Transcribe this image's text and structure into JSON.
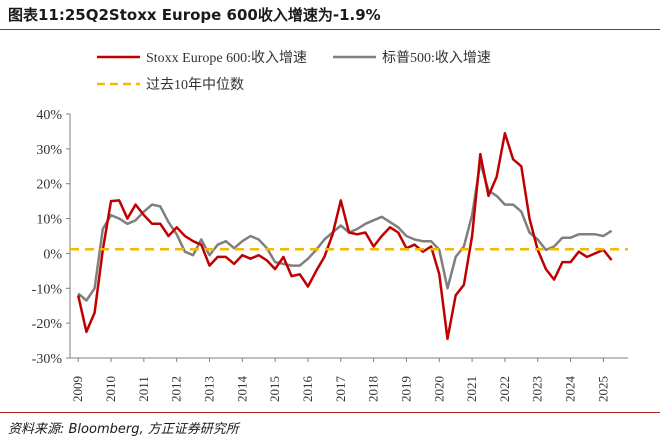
{
  "title": "图表11:25Q2Stoxx Europe 600收入增速为-1.9%",
  "source": "资料来源: Bloomberg, 方正证券研究所",
  "chart_data": {
    "type": "line",
    "ylim": [
      -30,
      40
    ],
    "yticks": [
      -30,
      -20,
      -10,
      0,
      10,
      20,
      30,
      40
    ],
    "ytick_labels": [
      "-30%",
      "-20%",
      "-10%",
      "0%",
      "10%",
      "20%",
      "30%",
      "40%"
    ],
    "xlim": [
      2008.75,
      2025.75
    ],
    "xticks": [
      2009,
      2010,
      2011,
      2012,
      2013,
      2014,
      2015,
      2016,
      2017,
      2018,
      2019,
      2020,
      2021,
      2022,
      2023,
      2024,
      2025
    ],
    "xtick_labels": [
      "2009",
      "2010",
      "2011",
      "2012",
      "2013",
      "2014",
      "2015",
      "2016",
      "2017",
      "2018",
      "2019",
      "2020",
      "2021",
      "2022",
      "2023",
      "2024",
      "2025"
    ],
    "legend": {
      "placement": "top",
      "items": [
        "Stoxx Europe 600:收入增速",
        "标普500:收入增速",
        "过去10年中位数"
      ]
    },
    "series": [
      {
        "name": "Stoxx Europe 600:收入增速",
        "color": "#c00000",
        "style": "solid",
        "x": [
          2009.0,
          2009.25,
          2009.5,
          2009.75,
          2010.0,
          2010.25,
          2010.5,
          2010.75,
          2011.0,
          2011.25,
          2011.5,
          2011.75,
          2012.0,
          2012.25,
          2012.5,
          2012.75,
          2013.0,
          2013.25,
          2013.5,
          2013.75,
          2014.0,
          2014.25,
          2014.5,
          2014.75,
          2015.0,
          2015.25,
          2015.5,
          2015.75,
          2016.0,
          2016.25,
          2016.5,
          2016.75,
          2017.0,
          2017.25,
          2017.5,
          2017.75,
          2018.0,
          2018.25,
          2018.5,
          2018.75,
          2019.0,
          2019.25,
          2019.5,
          2019.75,
          2020.0,
          2020.25,
          2020.5,
          2020.75,
          2021.0,
          2021.25,
          2021.5,
          2021.75,
          2022.0,
          2022.25,
          2022.5,
          2022.75,
          2023.0,
          2023.25,
          2023.5,
          2023.75,
          2024.0,
          2024.25,
          2024.5,
          2024.75,
          2025.0,
          2025.25
        ],
        "values": [
          -12,
          -22.5,
          -17,
          1,
          15,
          15.2,
          10,
          14,
          11,
          8.5,
          8.5,
          5,
          7.5,
          5,
          3.5,
          2.5,
          -3.5,
          -1,
          -1,
          -3,
          -0.5,
          -1.5,
          -0.5,
          -2,
          -4.5,
          -1,
          -6.5,
          -6,
          -9.5,
          -5,
          -1,
          5.5,
          15.2,
          6,
          5.5,
          6,
          2,
          5,
          7.5,
          6,
          1.5,
          2.5,
          0.5,
          2,
          -6,
          -24.5,
          -12,
          -9,
          5,
          28.5,
          16.5,
          22,
          34.5,
          27,
          25,
          10,
          1,
          -4.5,
          -7.5,
          -2.5,
          -2.5,
          0.5,
          -1,
          0,
          1,
          -1.9
        ]
      },
      {
        "name": "标普500:收入增速",
        "color": "#7f7f7f",
        "style": "solid",
        "x": [
          2009.0,
          2009.25,
          2009.5,
          2009.75,
          2010.0,
          2010.25,
          2010.5,
          2010.75,
          2011.0,
          2011.25,
          2011.5,
          2011.75,
          2012.0,
          2012.25,
          2012.5,
          2012.75,
          2013.0,
          2013.25,
          2013.5,
          2013.75,
          2014.0,
          2014.25,
          2014.5,
          2014.75,
          2015.0,
          2015.25,
          2015.5,
          2015.75,
          2016.0,
          2016.25,
          2016.5,
          2016.75,
          2017.0,
          2017.25,
          2017.5,
          2017.75,
          2018.0,
          2018.25,
          2018.5,
          2018.75,
          2019.0,
          2019.25,
          2019.5,
          2019.75,
          2020.0,
          2020.25,
          2020.5,
          2020.75,
          2021.0,
          2021.25,
          2021.5,
          2021.75,
          2022.0,
          2022.25,
          2022.5,
          2022.75,
          2023.0,
          2023.25,
          2023.5,
          2023.75,
          2024.0,
          2024.25,
          2024.5,
          2024.75,
          2025.0,
          2025.25
        ],
        "values": [
          -11.5,
          -13.5,
          -10,
          7,
          11,
          10,
          8.5,
          9.5,
          12,
          14,
          13.5,
          9,
          5.5,
          0.5,
          -0.5,
          4,
          -0.5,
          2.5,
          3.5,
          1.5,
          3.5,
          5,
          4,
          1.5,
          -2.5,
          -3,
          -3.5,
          -3.5,
          -1.5,
          1,
          4,
          6,
          8,
          6,
          7,
          8.5,
          9.5,
          10.5,
          9,
          7.5,
          5,
          4,
          3.5,
          3.5,
          1,
          -10,
          -1,
          2,
          11,
          26,
          18,
          16.5,
          14,
          14,
          12,
          6,
          4,
          1,
          2,
          4.5,
          4.5,
          5.5,
          5.5,
          5.5,
          5,
          6.5
        ]
      },
      {
        "name": "过去10年中位数",
        "color": "#f5b800",
        "style": "dashed",
        "x": [
          2008.75,
          2025.75
        ],
        "values": [
          1.2,
          1.2
        ]
      }
    ]
  }
}
